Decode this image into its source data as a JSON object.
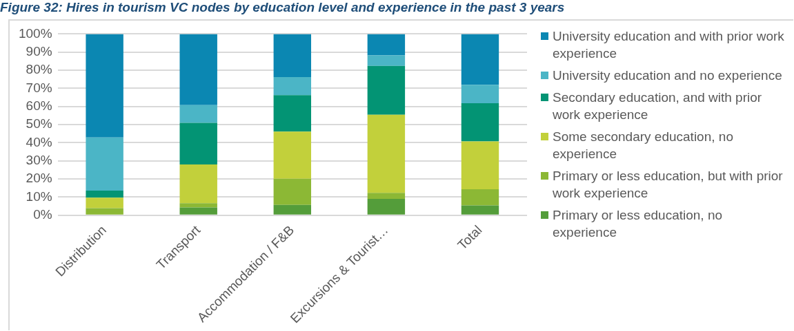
{
  "chart_data": {
    "type": "bar",
    "stacked": true,
    "title": "Figure 32: Hires in tourism VC nodes by education level and experience in the past 3 years",
    "categories": [
      "Distribution",
      "Transport",
      "Accommodation / F&B",
      "Excursions & Tourist…",
      "Total"
    ],
    "series": [
      {
        "name": "Primary or less education, no experience",
        "color": "#549d3a",
        "values": [
          0,
          4.3,
          5.7,
          9.0,
          5.4
        ]
      },
      {
        "name": "Primary or less education, but with prior work experience",
        "color": "#8cb835",
        "values": [
          3.9,
          2.3,
          14.4,
          3.3,
          8.9
        ]
      },
      {
        "name": "Some secondary education, no experience",
        "color": "#c2d03b",
        "values": [
          5.8,
          21.4,
          26.0,
          43.1,
          26.4
        ]
      },
      {
        "name": "Secondary education, and with prior work experience",
        "color": "#039474",
        "values": [
          3.9,
          23.0,
          20.2,
          27.0,
          21.1
        ]
      },
      {
        "name": "University education and no experience",
        "color": "#4bb5c6",
        "values": [
          29.3,
          9.8,
          9.9,
          5.8,
          10.2
        ]
      },
      {
        "name": "University education and with prior work experience",
        "color": "#0b87b2",
        "values": [
          57.1,
          39.2,
          23.8,
          11.8,
          28.0
        ]
      }
    ],
    "ylim": [
      0,
      100
    ],
    "yticks": [
      {
        "value": 0,
        "label": "0%"
      },
      {
        "value": 10,
        "label": "10%"
      },
      {
        "value": 20,
        "label": "20%"
      },
      {
        "value": 30,
        "label": "30%"
      },
      {
        "value": 40,
        "label": "40%"
      },
      {
        "value": 50,
        "label": "50%"
      },
      {
        "value": 60,
        "label": "60%"
      },
      {
        "value": 70,
        "label": "70%"
      },
      {
        "value": 80,
        "label": "80%"
      },
      {
        "value": 90,
        "label": "90%"
      },
      {
        "value": 100,
        "label": "100%"
      }
    ],
    "grid": "y",
    "legend": "right"
  }
}
